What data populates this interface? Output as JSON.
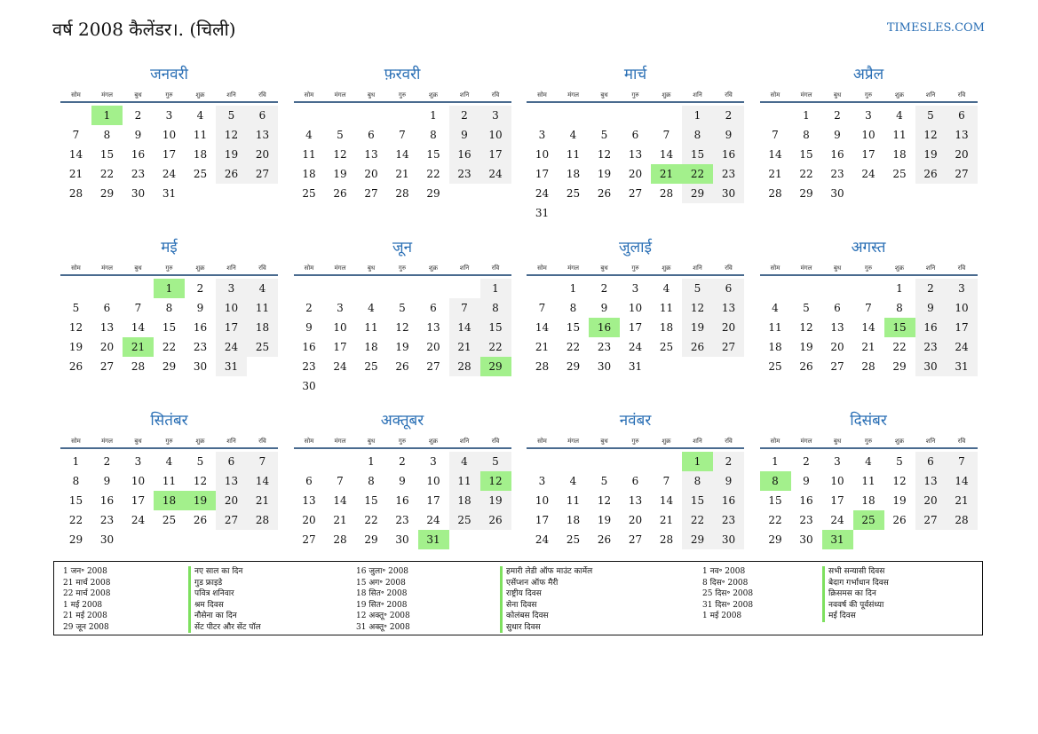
{
  "header": {
    "title": "वर्ष 2008 कैलेंडर।. (चिली)",
    "site": "TIMESLES.COM"
  },
  "weekdays": [
    "सोम",
    "मंगल",
    "बुध",
    "गुरु",
    "शुक्र",
    "शनि",
    "रवि"
  ],
  "colors": {
    "accent": "#2a6fb5",
    "holiday": "#a3f08c",
    "weekend": "#f1f1f1"
  },
  "months": [
    {
      "name": "जनवरी",
      "offset": 1,
      "days": 31,
      "holidays": [
        1
      ]
    },
    {
      "name": "फ़रवरी",
      "offset": 4,
      "days": 29,
      "holidays": []
    },
    {
      "name": "मार्च",
      "offset": 5,
      "days": 31,
      "holidays": [
        21,
        22
      ]
    },
    {
      "name": "अप्रैल",
      "offset": 1,
      "days": 30,
      "holidays": []
    },
    {
      "name": "मई",
      "offset": 3,
      "days": 31,
      "holidays": [
        1,
        21
      ]
    },
    {
      "name": "जून",
      "offset": 6,
      "days": 30,
      "holidays": [
        29
      ]
    },
    {
      "name": "जुलाई",
      "offset": 1,
      "days": 31,
      "holidays": [
        16
      ]
    },
    {
      "name": "अगस्त",
      "offset": 4,
      "days": 31,
      "holidays": [
        15
      ]
    },
    {
      "name": "सितंबर",
      "offset": 0,
      "days": 30,
      "holidays": [
        18,
        19
      ]
    },
    {
      "name": "अक्तूबर",
      "offset": 2,
      "days": 31,
      "holidays": [
        12,
        31
      ]
    },
    {
      "name": "नवंबर",
      "offset": 5,
      "days": 30,
      "holidays": [
        1
      ]
    },
    {
      "name": "दिसंबर",
      "offset": 0,
      "days": 31,
      "holidays": [
        8,
        25,
        31
      ]
    }
  ],
  "legend": [
    {
      "dates": [
        "1 जन॰ 2008",
        "21 मार्च 2008",
        "22 मार्च 2008",
        "1 मई 2008",
        "21 मई 2008",
        "29 जून 2008"
      ],
      "names": [
        "नए साल का दिन",
        "गुड फ्राइडे",
        "पवित्र शनिवार",
        "श्रम दिवस",
        "नौसेना का दिन",
        "सेंट पीटर और सेंट पॉल"
      ]
    },
    {
      "dates": [
        "16 जुला॰ 2008",
        "15 अग॰ 2008",
        "18 सित॰ 2008",
        "19 सित॰ 2008",
        "12 अक्तू॰ 2008",
        "31 अक्तू॰ 2008"
      ],
      "names": [
        "हमारी लेडी ऑफ माउंट कार्मेल",
        "एसेंप्शन ऑफ मैरी",
        "राष्ट्रीय दिवस",
        "सेना दिवस",
        "कोलंबस दिवस",
        "सुधार दिवस"
      ]
    },
    {
      "dates": [
        "1 नव॰ 2008",
        "8 दिस॰ 2008",
        "25 दिस॰ 2008",
        "31 दिस॰ 2008",
        "1 मई 2008"
      ],
      "names": [
        "सभी सन्यासी दिवस",
        "बेदाग गर्भाधान दिवस",
        "क्रिसमस का दिन",
        "नववर्ष की पूर्वसंध्या",
        "मई दिवस"
      ]
    }
  ]
}
